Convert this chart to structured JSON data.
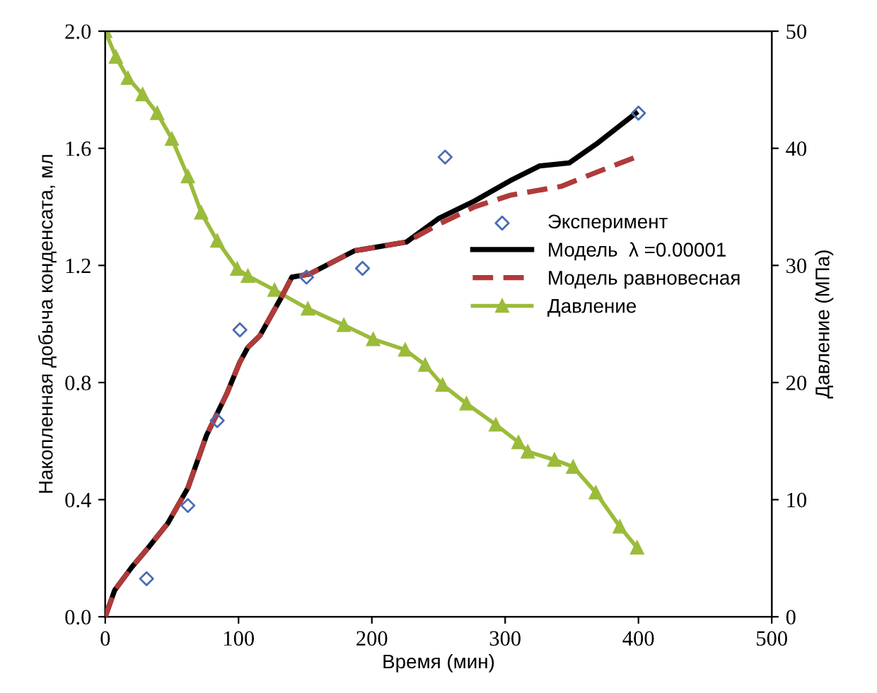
{
  "chart_data": {
    "type": "line",
    "xlabel": "Время (мин)",
    "ylabel": "Накопленная добыча конденсата, мл",
    "y2label": "Давление (МПа)",
    "xlim": [
      0,
      500
    ],
    "xticks": [
      0,
      100,
      200,
      300,
      400,
      500
    ],
    "ylim": [
      0,
      2.0
    ],
    "yticks": [
      {
        "value": 0,
        "label": "0.0"
      },
      {
        "value": 0.4,
        "label": "0.4"
      },
      {
        "value": 0.8,
        "label": "0.8"
      },
      {
        "value": 1.2,
        "label": "1.2"
      },
      {
        "value": 1.6,
        "label": "1.6"
      },
      {
        "value": 2.0,
        "label": "2.0"
      }
    ],
    "y2lim": [
      0,
      50
    ],
    "y2ticks": [
      0,
      10,
      20,
      30,
      40,
      50
    ],
    "grid": false,
    "legend": "right",
    "series": [
      {
        "name": "Эксперимент",
        "type": "scatter",
        "marker": "diamond",
        "color": "#4a6cb3",
        "x": [
          31,
          62,
          84,
          101,
          151,
          193,
          255,
          400
        ],
        "values": [
          0.13,
          0.38,
          0.67,
          0.98,
          1.16,
          1.19,
          1.57,
          1.72
        ]
      },
      {
        "name": "Модель  λ =0.00001",
        "marker": "none",
        "line_style": "solid",
        "color": "#000000",
        "x": [
          0,
          7,
          20,
          33,
          47,
          62,
          76,
          91,
          101,
          107,
          116,
          132,
          140,
          153,
          187,
          226,
          250,
          277,
          304,
          326,
          348,
          370,
          398
        ],
        "values": [
          0,
          0.09,
          0.17,
          0.24,
          0.32,
          0.44,
          0.62,
          0.76,
          0.87,
          0.92,
          0.96,
          1.09,
          1.16,
          1.17,
          1.25,
          1.28,
          1.36,
          1.42,
          1.49,
          1.54,
          1.55,
          1.62,
          1.72
        ]
      },
      {
        "name": "Модель равновесная",
        "marker": "none",
        "line_style": "dashed",
        "color": "#b03a3a",
        "x": [
          0,
          7,
          20,
          33,
          47,
          62,
          76,
          91,
          101,
          107,
          116,
          132,
          140,
          153,
          187,
          226,
          250,
          277,
          304,
          342,
          364,
          398
        ],
        "values": [
          0,
          0.09,
          0.17,
          0.24,
          0.32,
          0.44,
          0.62,
          0.76,
          0.87,
          0.92,
          0.96,
          1.09,
          1.16,
          1.17,
          1.25,
          1.28,
          1.34,
          1.4,
          1.44,
          1.47,
          1.51,
          1.57
        ]
      },
      {
        "name": "Давление",
        "axis": "y2",
        "marker": "triangle",
        "line_style": "solid",
        "color": "#9bbb3b",
        "x": [
          0,
          8,
          17,
          28,
          39,
          50,
          62,
          72,
          84,
          99,
          107,
          127,
          152,
          179,
          201,
          225,
          240,
          253,
          271,
          293,
          310,
          317,
          337,
          351,
          368,
          386,
          399
        ],
        "values": [
          50,
          47.8,
          46,
          44.6,
          43,
          40.8,
          37.6,
          34.5,
          32.1,
          29.7,
          29.1,
          27.9,
          26.3,
          24.9,
          23.7,
          22.8,
          21.5,
          19.8,
          18.2,
          16.4,
          14.9,
          14.1,
          13.4,
          12.8,
          10.6,
          7.7,
          5.9
        ]
      }
    ]
  }
}
